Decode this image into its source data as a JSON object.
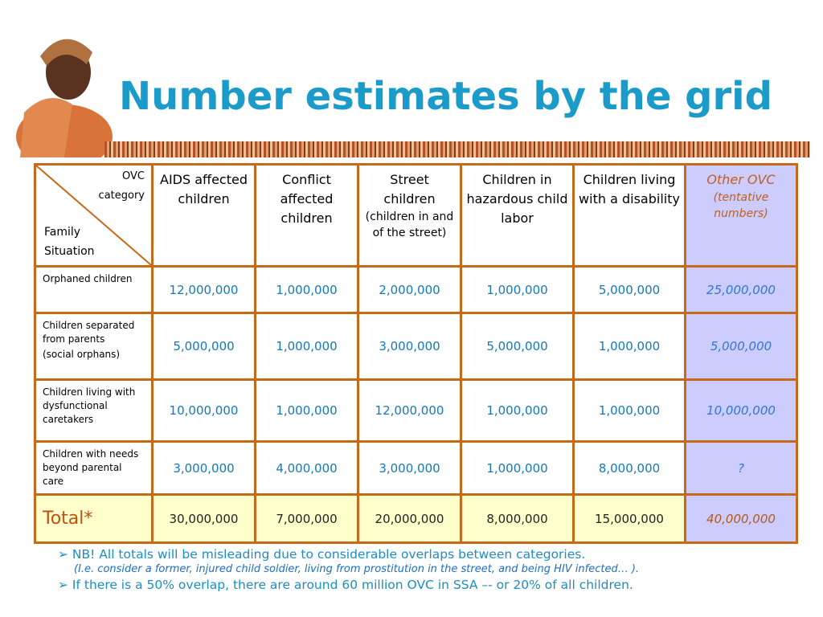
{
  "title": "Number estimates by the grid",
  "table": {
    "corner": {
      "top": [
        "OVC",
        "category"
      ],
      "bottom": [
        "Family",
        "Situation"
      ]
    },
    "columns": [
      {
        "label": "AIDS affected children"
      },
      {
        "label": "Conflict affected children"
      },
      {
        "label": "Street children",
        "note": "(children in and of the street)"
      },
      {
        "label": "Children in hazardous child labor"
      },
      {
        "label": "Children living with a disability"
      },
      {
        "label": "Other OVC",
        "note": "(tentative numbers)"
      }
    ],
    "rows": [
      {
        "label": "Orphaned children",
        "cells": [
          "12,000,000",
          "1,000,000",
          "2,000,000",
          "1,000,000",
          "5,000,000",
          "25,000,000"
        ]
      },
      {
        "label": "Children separated from parents",
        "note": "(social orphans)",
        "cells": [
          "5,000,000",
          "1,000,000",
          "3,000,000",
          "5,000,000",
          "1,000,000",
          "5,000,000"
        ]
      },
      {
        "label": "Children living with dysfunctional caretakers",
        "cells": [
          "10,000,000",
          "1,000,000",
          "12,000,000",
          "1,000,000",
          "1,000,000",
          "10,000,000"
        ]
      },
      {
        "label": "Children with needs beyond parental care",
        "cells": [
          "3,000,000",
          "4,000,000",
          "3,000,000",
          "1,000,000",
          "8,000,000",
          "?"
        ]
      }
    ],
    "total": {
      "label": "Total*",
      "cells": [
        "30,000,000",
        "7,000,000",
        "20,000,000",
        "8,000,000",
        "15,000,000",
        "40,000,000"
      ]
    }
  },
  "notes": [
    {
      "text": "NB! All totals will be misleading due to considerable overlaps between categories.",
      "detail": "(I.e. consider a former, injured child soldier, living from prostitution in the street, and being HIV infected… )."
    },
    {
      "text": "If there is a 50% overlap, there are around 60 million OVC in SSA –- or 20% of all children."
    }
  ]
}
